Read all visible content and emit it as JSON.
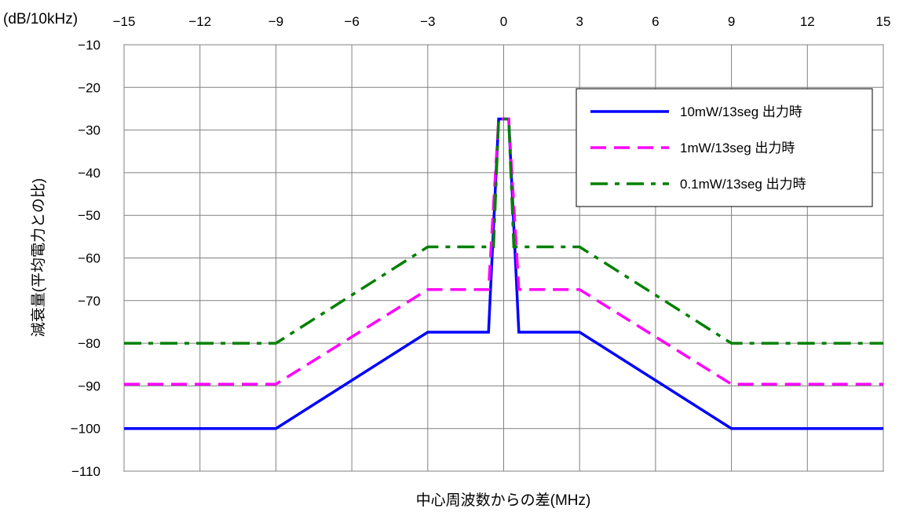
{
  "chart_data": {
    "type": "line",
    "x_unit_label": "(dB/10kHz)",
    "xlabel": "中心周波数からの差(MHz)",
    "ylabel": "減衰量(平均電力との比)",
    "xlim": [
      -15,
      15
    ],
    "ylim": [
      -110,
      -10
    ],
    "x_ticks": [
      -15,
      -12,
      -9,
      -6,
      -3,
      0,
      3,
      6,
      9,
      12,
      15
    ],
    "x_tick_labels": [
      "−15",
      "−12",
      "−9",
      "−6",
      "−3",
      "0",
      "3",
      "6",
      "9",
      "12",
      "15"
    ],
    "y_ticks": [
      -10,
      -20,
      -30,
      -40,
      -50,
      -60,
      -70,
      -80,
      -90,
      -100,
      -110
    ],
    "y_tick_labels": [
      "−10",
      "−20",
      "−30",
      "−40",
      "−50",
      "−60",
      "−70",
      "−80",
      "−90",
      "−100",
      "−110"
    ],
    "grid": true,
    "legend_position": "top-right",
    "series": [
      {
        "name": "10mW/13seg 出力時",
        "color": "#0000ff",
        "dash": "solid",
        "x": [
          -15,
          -9,
          -3,
          -0.6,
          -0.2,
          0,
          0.2,
          0.6,
          3,
          9,
          15
        ],
        "y": [
          -100,
          -100,
          -77.4,
          -77.4,
          -27.4,
          -27.4,
          -27.4,
          -77.4,
          -77.4,
          -100,
          -100
        ]
      },
      {
        "name": "1mW/13seg 出力時",
        "color": "#ff00ff",
        "dash": "dashed",
        "x": [
          -15,
          -9,
          -3,
          -0.6,
          -0.2,
          0,
          0.2,
          0.6,
          3,
          9,
          15
        ],
        "y": [
          -89.6,
          -89.6,
          -67.4,
          -67.4,
          -27.4,
          -27.4,
          -27.4,
          -67.4,
          -67.4,
          -89.6,
          -89.6
        ]
      },
      {
        "name": "0.1mW/13seg 出力時",
        "color": "#008000",
        "dash": "dash-dot",
        "x": [
          -15,
          -9,
          -3,
          -0.4,
          -0.2,
          0,
          0.2,
          0.4,
          3,
          9,
          15
        ],
        "y": [
          -80,
          -80,
          -57.4,
          -57.4,
          -27.4,
          -27.4,
          -27.4,
          -57.4,
          -57.4,
          -80,
          -80
        ]
      }
    ]
  }
}
